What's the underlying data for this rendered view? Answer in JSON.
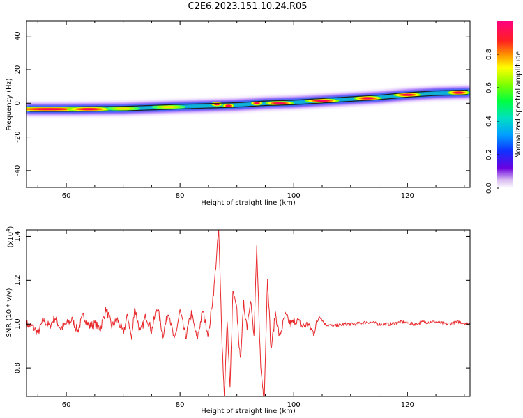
{
  "title": "C2E6.2023.151.10.24.R05",
  "chart_data": [
    {
      "type": "heatmap",
      "name": "spectrogram",
      "xlabel": "Height of straight line (km)",
      "ylabel": "Frequency (Hz)",
      "xlim": [
        53,
        131
      ],
      "ylim": [
        -50,
        49
      ],
      "xticks": [
        60,
        80,
        100,
        120
      ],
      "yticks": [
        -40,
        -20,
        0,
        20,
        40
      ],
      "colorbar": {
        "label": "Normalized spectral amplitude",
        "range": [
          0,
          1
        ],
        "ticks": [
          "0.0",
          "0.2",
          "0.4",
          "0.6",
          "0.8"
        ]
      },
      "ridge": [
        {
          "x": 53,
          "y": -3.5
        },
        {
          "x": 60,
          "y": -3.5
        },
        {
          "x": 70,
          "y": -3.2
        },
        {
          "x": 80,
          "y": -2
        },
        {
          "x": 85,
          "y": -1.5
        },
        {
          "x": 90,
          "y": -1
        },
        {
          "x": 95,
          "y": 0
        },
        {
          "x": 100,
          "y": 0.5
        },
        {
          "x": 105,
          "y": 1.5
        },
        {
          "x": 110,
          "y": 2.5
        },
        {
          "x": 115,
          "y": 3.5
        },
        {
          "x": 120,
          "y": 5
        },
        {
          "x": 125,
          "y": 6
        },
        {
          "x": 131,
          "y": 6.5
        }
      ],
      "hotspots": [
        {
          "x": 57,
          "y": -3.5,
          "w": 8,
          "amp": 1.0
        },
        {
          "x": 64,
          "y": -3.5,
          "w": 4,
          "amp": 0.95
        },
        {
          "x": 70,
          "y": -3.2,
          "w": 3,
          "amp": 0.55
        },
        {
          "x": 78,
          "y": -2.2,
          "w": 3,
          "amp": 0.5
        },
        {
          "x": 86.5,
          "y": -0.5,
          "w": 1,
          "amp": 0.85
        },
        {
          "x": 88.5,
          "y": -1.5,
          "w": 1,
          "amp": 0.9
        },
        {
          "x": 93.5,
          "y": 0,
          "w": 1,
          "amp": 0.9
        },
        {
          "x": 97.5,
          "y": 0,
          "w": 2.5,
          "amp": 1.0
        },
        {
          "x": 105,
          "y": 1.5,
          "w": 3,
          "amp": 1.0
        },
        {
          "x": 113,
          "y": 3,
          "w": 2.5,
          "amp": 1.0
        },
        {
          "x": 120,
          "y": 5,
          "w": 2.5,
          "amp": 1.0
        },
        {
          "x": 129,
          "y": 6.3,
          "w": 2,
          "amp": 1.0
        }
      ]
    },
    {
      "type": "line",
      "name": "snr",
      "xlabel": "Height of straight line (km)",
      "ylabel": "SNR (10 * v/v)",
      "scale_note": "(x10",
      "scale_exp": "4",
      "scale_close": ")",
      "xlim": [
        53,
        131
      ],
      "ylim": [
        0.67,
        1.43
      ],
      "xticks": [
        60,
        80,
        100,
        120
      ],
      "yticks": [
        0.8,
        1.0,
        1.2,
        1.4
      ],
      "ytick_labels": [
        "0.8",
        "1.0",
        "1.2",
        "1.4"
      ],
      "color": "#e8282b",
      "baseline": 1.0,
      "points": [
        [
          53,
          1.0
        ],
        [
          54,
          0.99
        ],
        [
          55,
          0.96
        ],
        [
          56,
          1.02
        ],
        [
          57,
          0.99
        ],
        [
          58,
          1.03
        ],
        [
          59,
          0.98
        ],
        [
          60,
          1.0
        ],
        [
          61,
          1.02
        ],
        [
          62,
          0.97
        ],
        [
          63,
          1.04
        ],
        [
          64,
          0.99
        ],
        [
          65,
          1.0
        ],
        [
          66,
          0.98
        ],
        [
          67,
          1.07
        ],
        [
          68,
          0.99
        ],
        [
          69,
          1.02
        ],
        [
          70,
          0.96
        ],
        [
          70.8,
          1.04
        ],
        [
          71.5,
          0.93
        ],
        [
          72,
          1.08
        ],
        [
          73,
          0.96
        ],
        [
          74,
          1.04
        ],
        [
          75,
          0.97
        ],
        [
          76,
          1.08
        ],
        [
          77,
          0.95
        ],
        [
          78,
          1.06
        ],
        [
          79,
          0.92
        ],
        [
          80,
          1.06
        ],
        [
          81,
          0.94
        ],
        [
          82,
          1.05
        ],
        [
          83,
          0.93
        ],
        [
          84,
          1.06
        ],
        [
          85,
          0.95
        ],
        [
          86,
          1.17
        ],
        [
          86.8,
          1.43
        ],
        [
          87.4,
          0.92
        ],
        [
          87.8,
          0.67
        ],
        [
          88.3,
          1.02
        ],
        [
          88.8,
          0.7
        ],
        [
          89.3,
          1.15
        ],
        [
          90,
          1.06
        ],
        [
          90.6,
          0.83
        ],
        [
          91.2,
          1.09
        ],
        [
          91.8,
          0.99
        ],
        [
          92.4,
          1.12
        ],
        [
          93,
          0.94
        ],
        [
          93.5,
          1.34
        ],
        [
          94.2,
          0.8
        ],
        [
          94.8,
          0.65
        ],
        [
          95.4,
          1.22
        ],
        [
          96,
          0.88
        ],
        [
          96.8,
          1.05
        ],
        [
          97.5,
          0.94
        ],
        [
          98.5,
          1.04
        ],
        [
          99.5,
          1.0
        ],
        [
          100.5,
          1.02
        ],
        [
          101.5,
          0.99
        ],
        [
          102.5,
          1.0
        ],
        [
          103.5,
          0.96
        ],
        [
          104.5,
          1.04
        ],
        [
          105.5,
          1.0
        ],
        [
          107,
          0.99
        ],
        [
          109,
          1.0
        ],
        [
          111,
          1.0
        ],
        [
          113,
          1.01
        ],
        [
          115,
          1.0
        ],
        [
          117,
          1.0
        ],
        [
          119,
          1.01
        ],
        [
          121,
          1.0
        ],
        [
          123,
          1.01
        ],
        [
          125,
          1.01
        ],
        [
          127,
          1.0
        ],
        [
          129,
          1.01
        ],
        [
          131,
          1.0
        ]
      ]
    }
  ]
}
